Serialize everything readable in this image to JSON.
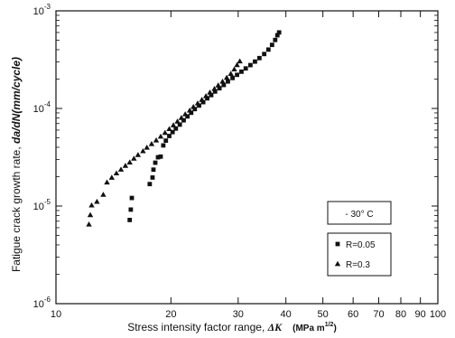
{
  "chart_data": {
    "type": "scatter",
    "xscale": "log",
    "yscale": "log",
    "xlim": [
      10,
      100
    ],
    "ylim": [
      1e-06,
      0.001
    ],
    "grid": false,
    "xlabel_main": "Stress intensity factor range, ",
    "xlabel_symbol": "ΔK",
    "xlabel_unit": "(MPa m",
    "xlabel_unit_exp": "1/2",
    "xlabel_unit_close": ")",
    "ylabel_main": "Fatigue crack growth rate, ",
    "ylabel_symbol": "da/dN(mm/cycle)",
    "x_ticks": [
      {
        "value": 10,
        "label": "10"
      },
      {
        "value": 20,
        "label": "20"
      },
      {
        "value": 30,
        "label": "30"
      },
      {
        "value": 40,
        "label": "40"
      },
      {
        "value": 50,
        "label": "50"
      },
      {
        "value": 60,
        "label": "60"
      },
      {
        "value": 70,
        "label": "70"
      },
      {
        "value": 80,
        "label": "80"
      },
      {
        "value": 90,
        "label": "90"
      },
      {
        "value": 100,
        "label": "100"
      }
    ],
    "y_ticks": [
      {
        "value": 1e-06,
        "base": "10",
        "exp": "-6"
      },
      {
        "value": 1e-05,
        "base": "10",
        "exp": "-5"
      },
      {
        "value": 0.0001,
        "base": "10",
        "exp": "-4"
      },
      {
        "value": 0.001,
        "base": "10",
        "exp": "-3"
      }
    ],
    "annotation": "- 30° C",
    "series": [
      {
        "name": "R=0.05",
        "marker": "square",
        "color": "#111111",
        "points": [
          [
            15.6,
            7.2e-06
          ],
          [
            15.7,
            9.2e-06
          ],
          [
            15.8,
            1.21e-05
          ],
          [
            17.6,
            1.68e-05
          ],
          [
            17.9,
            1.96e-05
          ],
          [
            18.0,
            2.36e-05
          ],
          [
            18.2,
            2.78e-05
          ],
          [
            18.5,
            3.16e-05
          ],
          [
            18.8,
            3.21e-05
          ],
          [
            19.1,
            4.18e-05
          ],
          [
            19.4,
            4.68e-05
          ],
          [
            19.8,
            5.22e-05
          ],
          [
            20.2,
            5.72e-05
          ],
          [
            20.6,
            6.22e-05
          ],
          [
            21.1,
            6.83e-05
          ],
          [
            21.6,
            7.56e-05
          ],
          [
            22.1,
            8.29e-05
          ],
          [
            22.6,
            9.03e-05
          ],
          [
            23.1,
            9.85e-05
          ],
          [
            23.7,
            0.000107
          ],
          [
            24.3,
            0.000116
          ],
          [
            24.9,
            0.000127
          ],
          [
            25.5,
            0.000137
          ],
          [
            26.1,
            0.000149
          ],
          [
            26.8,
            0.000161
          ],
          [
            27.5,
            0.000174
          ],
          [
            28.2,
            0.000189
          ],
          [
            29.0,
            0.000205
          ],
          [
            29.8,
            0.000221
          ],
          [
            30.6,
            0.000238
          ],
          [
            31.4,
            0.000257
          ],
          [
            32.3,
            0.000278
          ],
          [
            33.2,
            0.000302
          ],
          [
            34.1,
            0.000328
          ],
          [
            35.1,
            0.000361
          ],
          [
            36.0,
            0.000401
          ],
          [
            36.8,
            0.000448
          ],
          [
            37.5,
            0.000503
          ],
          [
            38.0,
            0.000562
          ],
          [
            38.4,
            0.000601
          ]
        ]
      },
      {
        "name": "R=0.3",
        "marker": "triangle",
        "color": "#111111",
        "points": [
          [
            12.2,
            6.5e-06
          ],
          [
            12.3,
            8.1e-06
          ],
          [
            12.4,
            1.02e-05
          ],
          [
            12.8,
            1.11e-05
          ],
          [
            13.3,
            1.31e-05
          ],
          [
            13.6,
            1.75e-05
          ],
          [
            14.0,
            1.96e-05
          ],
          [
            14.4,
            2.17e-05
          ],
          [
            14.8,
            2.37e-05
          ],
          [
            15.2,
            2.59e-05
          ],
          [
            15.6,
            2.81e-05
          ],
          [
            16.0,
            3.07e-05
          ],
          [
            16.4,
            3.35e-05
          ],
          [
            16.9,
            3.66e-05
          ],
          [
            17.3,
            3.98e-05
          ],
          [
            17.8,
            4.33e-05
          ],
          [
            18.3,
            4.72e-05
          ],
          [
            18.8,
            5.16e-05
          ],
          [
            19.3,
            5.64e-05
          ],
          [
            19.8,
            6.17e-05
          ],
          [
            20.3,
            6.74e-05
          ],
          [
            20.8,
            7.36e-05
          ],
          [
            21.3,
            8.03e-05
          ],
          [
            21.8,
            8.75e-05
          ],
          [
            22.4,
            9.55e-05
          ],
          [
            22.9,
            0.000104
          ],
          [
            23.5,
            0.000113
          ],
          [
            24.1,
            0.000123
          ],
          [
            24.7,
            0.000134
          ],
          [
            25.3,
            0.000146
          ],
          [
            26.0,
            0.000159
          ],
          [
            26.6,
            0.000173
          ],
          [
            27.3,
            0.000189
          ],
          [
            28.0,
            0.000207
          ],
          [
            28.7,
            0.000227
          ],
          [
            29.3,
            0.000252
          ],
          [
            29.8,
            0.000279
          ],
          [
            30.3,
            0.000305
          ]
        ]
      }
    ]
  }
}
